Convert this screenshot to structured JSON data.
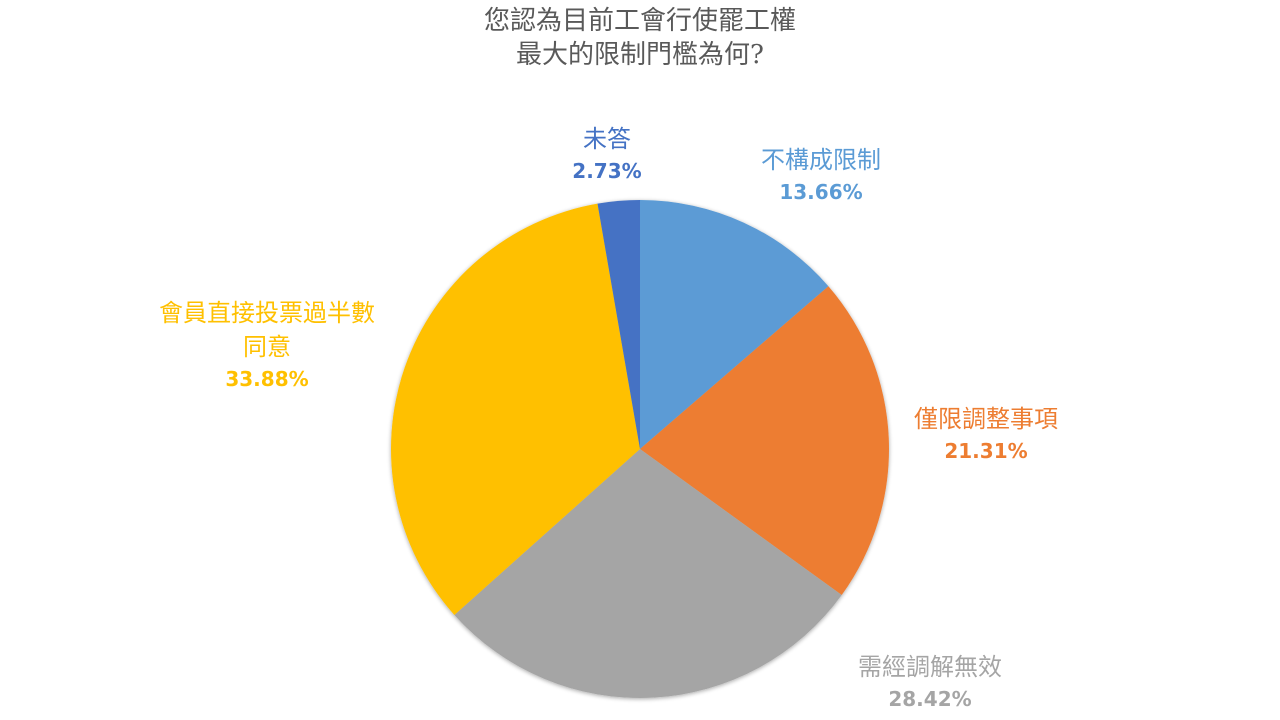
{
  "title": {
    "line1": "您認為目前工會行使罷工權",
    "line2": "最大的限制門檻為何?"
  },
  "colors": {
    "title": "#595959",
    "slice_1": "#5B9BD5",
    "slice_2": "#ED7D31",
    "slice_3": "#A5A5A5",
    "slice_4": "#FFC000",
    "slice_5": "#4472C4"
  },
  "labels": [
    {
      "name": "不構成限制",
      "pct": "13.66%"
    },
    {
      "name": "僅限調整事項",
      "pct": "21.31%"
    },
    {
      "name": "需經調解無效",
      "pct": "28.42%"
    },
    {
      "name": "會員直接投票過半數",
      "name2": "同意",
      "pct": "33.88%"
    },
    {
      "name": "未答",
      "pct": "2.73%"
    }
  ],
  "chart_data": {
    "type": "pie",
    "title": "您認為目前工會行使罷工權最大的限制門檻為何?",
    "categories": [
      "不構成限制",
      "僅限調整事項",
      "需經調解無效",
      "會員直接投票過半數同意",
      "未答"
    ],
    "values": [
      13.66,
      21.31,
      28.42,
      33.88,
      2.73
    ],
    "unit": "%",
    "colors": [
      "#5B9BD5",
      "#ED7D31",
      "#A5A5A5",
      "#FFC000",
      "#4472C4"
    ],
    "start_angle": "12 o'clock",
    "direction": "clockwise",
    "legend": "none (data labels outside slices)"
  }
}
